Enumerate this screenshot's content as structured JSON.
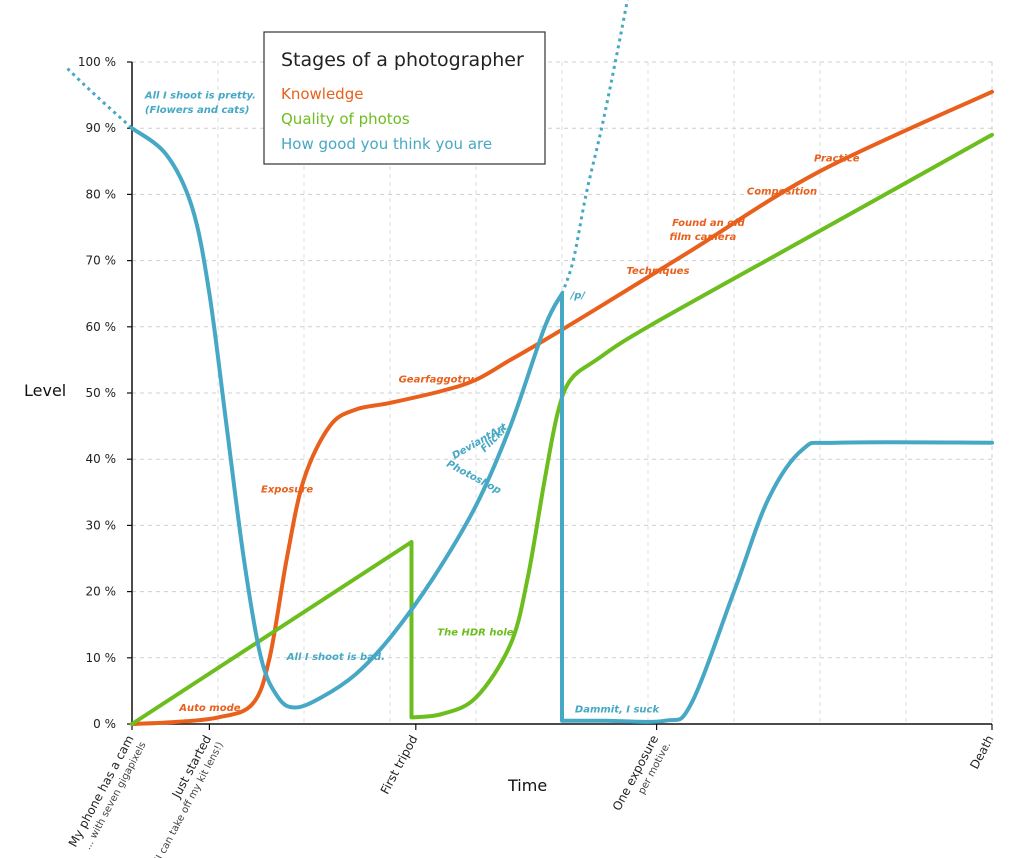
{
  "chart_data": {
    "type": "line",
    "title": "Stages of a photographer",
    "xlabel": "Time",
    "ylabel": "Level",
    "xlim": [
      0,
      100
    ],
    "ylim": [
      0,
      100
    ],
    "grid": true,
    "legend_position": "top",
    "y_ticks": [
      "0 %",
      "10 %",
      "20 %",
      "30 %",
      "40 %",
      "50 %",
      "60 %",
      "70 %",
      "80 %",
      "90 %",
      "100 %"
    ],
    "x_categories": [
      {
        "x": 0,
        "label": "My phone has a cam",
        "sublabel": "... with seven gigapixels"
      },
      {
        "x": 9,
        "label": "Just started",
        "sublabel": "(I can take off my kit lens!)"
      },
      {
        "x": 33,
        "label": "First tripod",
        "sublabel": ""
      },
      {
        "x": 61,
        "label": "One exposure",
        "sublabel": "per motive."
      },
      {
        "x": 100,
        "label": "Death",
        "sublabel": ""
      }
    ],
    "series": [
      {
        "name": "Knowledge",
        "color": "#e8601c",
        "points": [
          [
            0,
            0
          ],
          [
            5,
            0.3
          ],
          [
            10,
            1
          ],
          [
            14,
            3
          ],
          [
            16,
            10
          ],
          [
            18,
            25
          ],
          [
            20,
            37
          ],
          [
            23,
            45
          ],
          [
            26,
            47.5
          ],
          [
            30,
            48.5
          ],
          [
            36,
            50.3
          ],
          [
            40,
            52
          ],
          [
            44,
            55
          ],
          [
            48,
            58
          ],
          [
            55,
            63.5
          ],
          [
            65,
            71.5
          ],
          [
            80,
            83.5
          ],
          [
            100,
            95.5
          ]
        ]
      },
      {
        "name": "Quality of photos",
        "color": "#6cbe1e",
        "points": [
          [
            0,
            0
          ],
          [
            32.5,
            27.5
          ],
          [
            32.5,
            1
          ],
          [
            36,
            1.5
          ],
          [
            40,
            4
          ],
          [
            44,
            12
          ],
          [
            46,
            22
          ],
          [
            48,
            37
          ],
          [
            49.5,
            47
          ],
          [
            51,
            52
          ],
          [
            54,
            55
          ],
          [
            60,
            60
          ],
          [
            80,
            74.5
          ],
          [
            100,
            89
          ]
        ]
      },
      {
        "name": "How good you think you are",
        "color": "#46a8c4",
        "points": [
          [
            0,
            90
          ],
          [
            4,
            86
          ],
          [
            7,
            78
          ],
          [
            9,
            65
          ],
          [
            11,
            45
          ],
          [
            13,
            25
          ],
          [
            15,
            10
          ],
          [
            17,
            4
          ],
          [
            19,
            2.5
          ],
          [
            22,
            4
          ],
          [
            26,
            7.5
          ],
          [
            30,
            13
          ],
          [
            35,
            22
          ],
          [
            40,
            33
          ],
          [
            44,
            45
          ],
          [
            48,
            60
          ],
          [
            50,
            65
          ],
          [
            50,
            0.5
          ],
          [
            55,
            0.5
          ],
          [
            62,
            0.5
          ],
          [
            65,
            3
          ],
          [
            70,
            20
          ],
          [
            74,
            34
          ],
          [
            78,
            41.5
          ],
          [
            82,
            42.5
          ],
          [
            100,
            42.5
          ]
        ],
        "dashed_extensions": [
          {
            "points": [
              [
                -7.5,
                99
              ],
              [
                -5.5,
                96.5
              ],
              [
                -3,
                93.5
              ],
              [
                0,
                90
              ]
            ]
          },
          {
            "points": [
              [
                50,
                65
              ],
              [
                51.3,
                70
              ],
              [
                52.8,
                80
              ],
              [
                54.6,
                90
              ],
              [
                56.2,
                100
              ],
              [
                57.7,
                110
              ]
            ]
          }
        ]
      }
    ],
    "annotations": [
      {
        "text": "All I shoot is pretty.",
        "x": 1.5,
        "y": 94.5,
        "series": "How good you think you are"
      },
      {
        "text": "(Flowers and cats)",
        "x": 1.5,
        "y": 92.3,
        "series": "How good you think you are"
      },
      {
        "text": "Auto mode",
        "x": 5.5,
        "y": 2,
        "series": "Knowledge"
      },
      {
        "text": "Exposure",
        "x": 15,
        "y": 35,
        "series": "Knowledge"
      },
      {
        "text": "All I shoot is bad.",
        "x": 18,
        "y": 9.7,
        "series": "How good you think you are"
      },
      {
        "text": "The HDR hole",
        "x": 35.5,
        "y": 13.4,
        "series": "Quality of photos"
      },
      {
        "text": "Gearfaggotry",
        "x": 31,
        "y": 51.6,
        "series": "Knowledge"
      },
      {
        "text": "DeviantArt",
        "x": 37.5,
        "y": 40,
        "series": "How good you think you are"
      },
      {
        "text": "Photoshop",
        "x": 36.5,
        "y": 39,
        "series": "How good you think you are"
      },
      {
        "text": "Flickr",
        "x": 41,
        "y": 41,
        "series": "How good you think you are"
      },
      {
        "text": "/p/",
        "x": 51,
        "y": 64.3,
        "series": "How good you think you are"
      },
      {
        "text": "Dammit, I suck",
        "x": 51.5,
        "y": 1.7,
        "series": "How good you think you are"
      },
      {
        "text": "Techniques",
        "x": 57.5,
        "y": 68,
        "series": "Knowledge"
      },
      {
        "text": "Found an old",
        "x": 62.8,
        "y": 75.2,
        "series": "Knowledge"
      },
      {
        "text": "film camera",
        "x": 62.5,
        "y": 73.1,
        "series": "Knowledge"
      },
      {
        "text": "Composition",
        "x": 71.5,
        "y": 80,
        "series": "Knowledge"
      },
      {
        "text": "Practice",
        "x": 79.3,
        "y": 85,
        "series": "Knowledge"
      }
    ]
  }
}
